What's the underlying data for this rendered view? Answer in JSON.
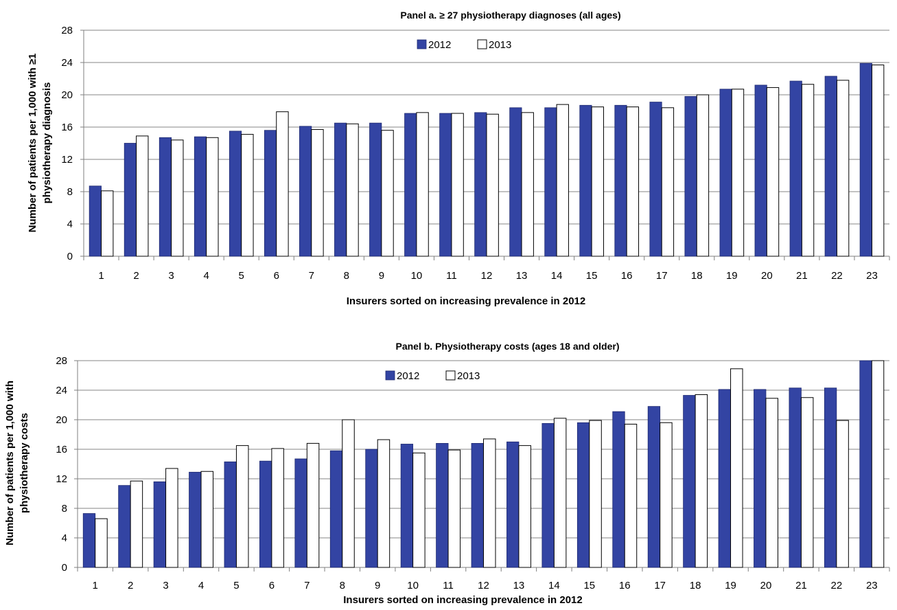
{
  "colors": {
    "series_2012": "#3344a3",
    "series_2013": "#ffffff",
    "gridline": "#868686",
    "axis": "#7f7f7f"
  },
  "chart_data": [
    {
      "type": "bar",
      "title": "Panel a. ≥ 27 physiotherapy diagnoses (all ages)",
      "xlabel": "Insurers sorted on increasing prevalence in 2012",
      "ylabel": [
        "Number of patients per 1,000 with ≥1",
        "physiotherapy diagnosis"
      ],
      "ylim": [
        0,
        28
      ],
      "yticks": [
        0,
        4,
        8,
        12,
        16,
        20,
        24,
        28
      ],
      "grid": true,
      "legend_position": "top-center",
      "categories": [
        "1",
        "2",
        "3",
        "4",
        "5",
        "6",
        "7",
        "8",
        "9",
        "10",
        "11",
        "12",
        "13",
        "14",
        "15",
        "16",
        "17",
        "18",
        "19",
        "20",
        "21",
        "22",
        "23"
      ],
      "series": [
        {
          "name": "2012",
          "values": [
            8.7,
            14.0,
            14.7,
            14.8,
            15.5,
            15.6,
            16.1,
            16.5,
            16.5,
            17.7,
            17.7,
            17.8,
            18.4,
            18.4,
            18.7,
            18.7,
            19.1,
            19.8,
            20.7,
            21.2,
            21.7,
            22.3,
            23.9
          ]
        },
        {
          "name": "2013",
          "values": [
            8.1,
            14.9,
            14.4,
            14.7,
            15.1,
            17.9,
            15.7,
            16.4,
            15.6,
            17.8,
            17.7,
            17.6,
            17.8,
            18.8,
            18.5,
            18.5,
            18.4,
            20.0,
            20.7,
            20.9,
            21.3,
            21.8,
            23.7
          ]
        }
      ]
    },
    {
      "type": "bar",
      "title": "Panel b. Physiotherapy costs (ages 18 and older)",
      "xlabel": "Insurers sorted on increasing prevalence in 2012",
      "ylabel": [
        "Number of patients per 1,000 with",
        "physiotherapy costs"
      ],
      "ylim": [
        0,
        28
      ],
      "yticks": [
        0,
        4,
        8,
        12,
        16,
        20,
        24,
        28
      ],
      "grid": true,
      "legend_position": "top-center",
      "categories": [
        "1",
        "2",
        "3",
        "4",
        "5",
        "6",
        "7",
        "8",
        "9",
        "10",
        "11",
        "12",
        "13",
        "14",
        "15",
        "16",
        "17",
        "18",
        "19",
        "20",
        "21",
        "22",
        "23"
      ],
      "series": [
        {
          "name": "2012",
          "values": [
            7.3,
            11.1,
            11.6,
            12.9,
            14.3,
            14.4,
            14.7,
            15.8,
            16.0,
            16.7,
            16.8,
            16.8,
            17.0,
            19.5,
            19.6,
            21.1,
            21.8,
            23.3,
            24.1,
            24.1,
            24.3,
            24.3,
            30.0
          ]
        },
        {
          "name": "2013",
          "values": [
            6.6,
            11.7,
            13.4,
            13.0,
            16.5,
            16.1,
            16.8,
            20.0,
            17.3,
            15.5,
            15.9,
            17.4,
            16.5,
            20.2,
            19.9,
            19.4,
            19.6,
            23.4,
            26.9,
            22.9,
            23.0,
            19.9,
            28.5
          ]
        }
      ]
    }
  ]
}
